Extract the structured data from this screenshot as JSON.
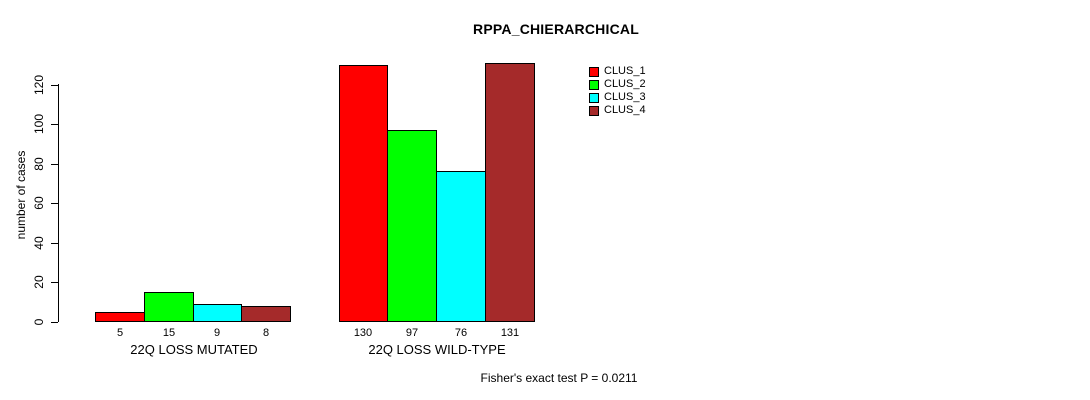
{
  "chart_data": {
    "type": "bar",
    "title": "RPPA_CHIERARCHICAL",
    "xlabel": "",
    "ylabel": "number of cases",
    "ylim": [
      0,
      131
    ],
    "yticks": [
      0,
      20,
      40,
      60,
      80,
      100,
      120
    ],
    "grid": false,
    "legend_position": "top-right",
    "categories": [
      "22Q LOSS MUTATED",
      "22Q LOSS WILD-TYPE"
    ],
    "series": [
      {
        "name": "CLUS_1",
        "color": "#FF0000",
        "values": [
          5,
          130
        ]
      },
      {
        "name": "CLUS_2",
        "color": "#00FF00",
        "values": [
          15,
          97
        ]
      },
      {
        "name": "CLUS_3",
        "color": "#00FFFF",
        "values": [
          9,
          76
        ]
      },
      {
        "name": "CLUS_4",
        "color": "#A52A2A",
        "values": [
          8,
          131
        ]
      }
    ],
    "bar_value_labels": [
      [
        5,
        15,
        9,
        8
      ],
      [
        130,
        97,
        76,
        131
      ]
    ],
    "annotation": "Fisher's exact test P = 0.0211"
  }
}
